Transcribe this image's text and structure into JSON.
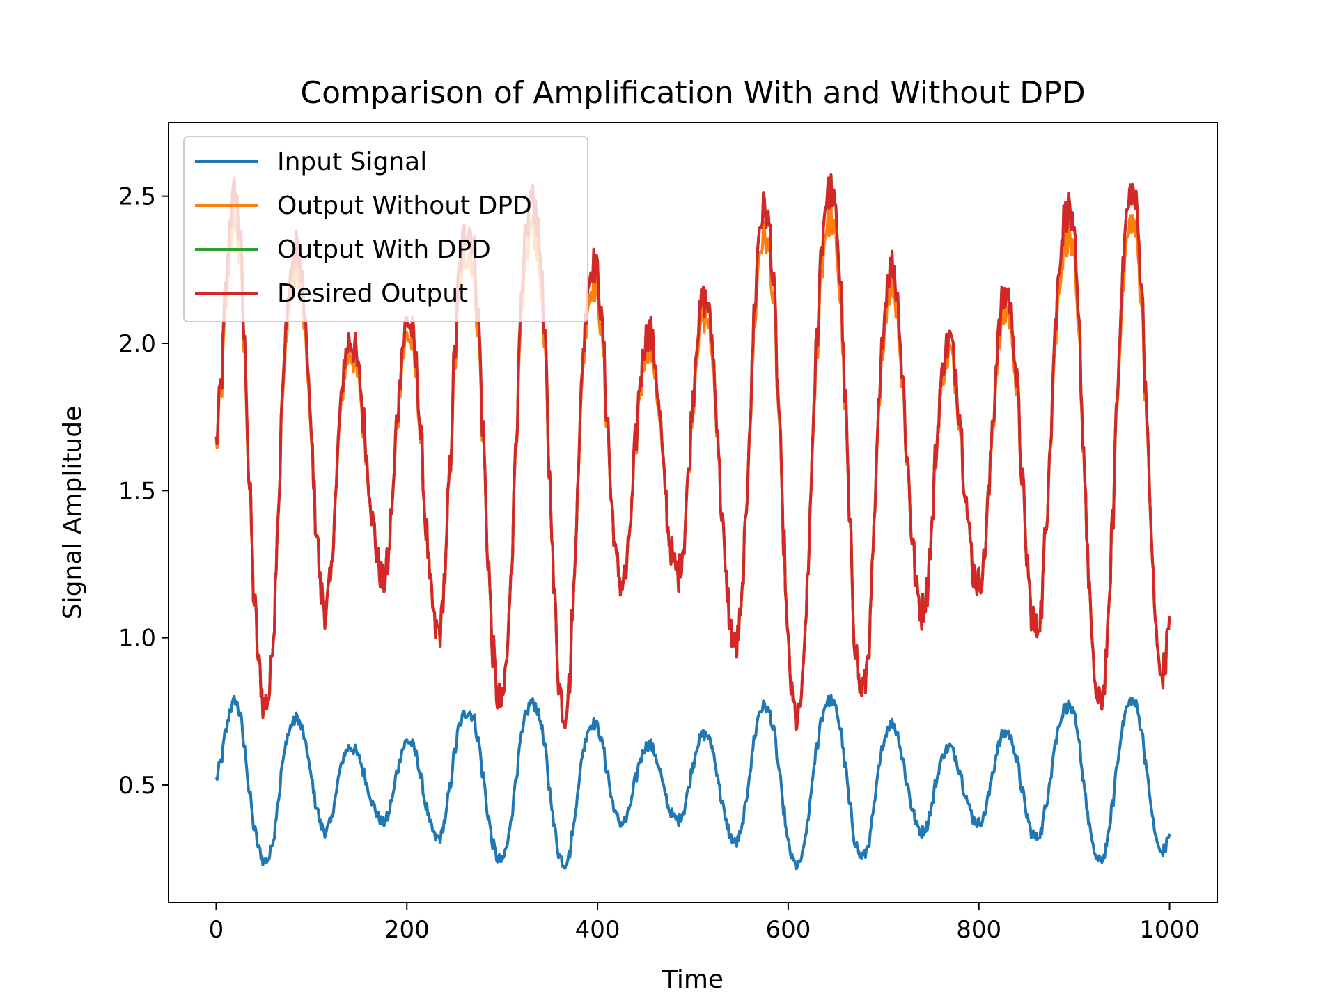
{
  "chart_data": {
    "type": "line",
    "title": "Comparison of Amplification With and Without DPD",
    "xlabel": "Time",
    "ylabel": "Signal Amplitude",
    "xlim": [
      -50,
      1050
    ],
    "ylim": [
      0.1,
      2.75
    ],
    "xticks": [
      0,
      200,
      400,
      600,
      800,
      1000
    ],
    "xtick_labels": [
      "0",
      "200",
      "400",
      "600",
      "800",
      "1000"
    ],
    "yticks": [
      0.5,
      1.0,
      1.5,
      2.0,
      2.5
    ],
    "ytick_labels": [
      "0.5",
      "1.0",
      "1.5",
      "2.0",
      "2.5"
    ],
    "grid": false,
    "legend_position": "top-left",
    "x_range": [
      0,
      1000
    ],
    "input_keypoints": [
      [
        0,
        0.52
      ],
      [
        5,
        0.58
      ],
      [
        10,
        0.68
      ],
      [
        15,
        0.76
      ],
      [
        20,
        0.79
      ],
      [
        25,
        0.74
      ],
      [
        30,
        0.62
      ],
      [
        35,
        0.47
      ],
      [
        40,
        0.35
      ],
      [
        45,
        0.28
      ],
      [
        50,
        0.24
      ],
      [
        55,
        0.25
      ],
      [
        60,
        0.32
      ],
      [
        65,
        0.45
      ],
      [
        70,
        0.58
      ],
      [
        75,
        0.67
      ],
      [
        80,
        0.71
      ],
      [
        85,
        0.73
      ],
      [
        90,
        0.69
      ],
      [
        95,
        0.62
      ],
      [
        100,
        0.52
      ],
      [
        105,
        0.43
      ],
      [
        110,
        0.36
      ],
      [
        115,
        0.34
      ],
      [
        120,
        0.37
      ],
      [
        125,
        0.46
      ],
      [
        130,
        0.55
      ],
      [
        135,
        0.61
      ],
      [
        140,
        0.63
      ],
      [
        145,
        0.62
      ],
      [
        150,
        0.59
      ],
      [
        155,
        0.54
      ],
      [
        160,
        0.48
      ],
      [
        165,
        0.43
      ],
      [
        170,
        0.39
      ],
      [
        175,
        0.37
      ],
      [
        180,
        0.39
      ],
      [
        185,
        0.46
      ],
      [
        190,
        0.55
      ],
      [
        195,
        0.62
      ],
      [
        200,
        0.65
      ],
      [
        205,
        0.64
      ],
      [
        210,
        0.6
      ],
      [
        215,
        0.52
      ],
      [
        220,
        0.43
      ],
      [
        225,
        0.36
      ],
      [
        230,
        0.32
      ],
      [
        235,
        0.32
      ],
      [
        240,
        0.38
      ],
      [
        245,
        0.49
      ],
      [
        250,
        0.61
      ],
      [
        255,
        0.7
      ],
      [
        260,
        0.74
      ],
      [
        265,
        0.75
      ],
      [
        270,
        0.73
      ],
      [
        275,
        0.65
      ],
      [
        280,
        0.53
      ],
      [
        285,
        0.4
      ],
      [
        290,
        0.3
      ],
      [
        295,
        0.25
      ],
      [
        300,
        0.24
      ],
      [
        305,
        0.29
      ],
      [
        310,
        0.4
      ],
      [
        315,
        0.54
      ],
      [
        320,
        0.66
      ],
      [
        325,
        0.74
      ],
      [
        330,
        0.78
      ],
      [
        335,
        0.77
      ],
      [
        340,
        0.72
      ],
      [
        345,
        0.62
      ],
      [
        350,
        0.48
      ],
      [
        355,
        0.35
      ],
      [
        360,
        0.26
      ],
      [
        365,
        0.23
      ],
      [
        370,
        0.26
      ],
      [
        375,
        0.36
      ],
      [
        380,
        0.5
      ],
      [
        385,
        0.62
      ],
      [
        390,
        0.69
      ],
      [
        395,
        0.71
      ],
      [
        400,
        0.7
      ],
      [
        405,
        0.64
      ],
      [
        410,
        0.55
      ],
      [
        415,
        0.45
      ],
      [
        420,
        0.39
      ],
      [
        425,
        0.37
      ],
      [
        430,
        0.38
      ],
      [
        435,
        0.44
      ],
      [
        440,
        0.52
      ],
      [
        445,
        0.59
      ],
      [
        450,
        0.63
      ],
      [
        455,
        0.64
      ],
      [
        460,
        0.61
      ],
      [
        465,
        0.55
      ],
      [
        470,
        0.48
      ],
      [
        475,
        0.42
      ],
      [
        480,
        0.39
      ],
      [
        485,
        0.38
      ],
      [
        490,
        0.41
      ],
      [
        495,
        0.48
      ],
      [
        500,
        0.57
      ],
      [
        505,
        0.64
      ],
      [
        510,
        0.67
      ],
      [
        515,
        0.67
      ],
      [
        520,
        0.63
      ],
      [
        525,
        0.55
      ],
      [
        530,
        0.45
      ],
      [
        535,
        0.37
      ],
      [
        540,
        0.32
      ],
      [
        545,
        0.3
      ],
      [
        550,
        0.33
      ],
      [
        555,
        0.42
      ],
      [
        560,
        0.55
      ],
      [
        565,
        0.67
      ],
      [
        570,
        0.75
      ],
      [
        575,
        0.77
      ],
      [
        580,
        0.75
      ],
      [
        585,
        0.68
      ],
      [
        590,
        0.56
      ],
      [
        595,
        0.42
      ],
      [
        600,
        0.3
      ],
      [
        605,
        0.24
      ],
      [
        610,
        0.22
      ],
      [
        615,
        0.26
      ],
      [
        620,
        0.36
      ],
      [
        625,
        0.5
      ],
      [
        630,
        0.63
      ],
      [
        635,
        0.73
      ],
      [
        640,
        0.78
      ],
      [
        645,
        0.79
      ],
      [
        650,
        0.76
      ],
      [
        655,
        0.69
      ],
      [
        660,
        0.56
      ],
      [
        665,
        0.42
      ],
      [
        670,
        0.31
      ],
      [
        675,
        0.26
      ],
      [
        680,
        0.26
      ],
      [
        685,
        0.31
      ],
      [
        690,
        0.42
      ],
      [
        695,
        0.55
      ],
      [
        700,
        0.65
      ],
      [
        705,
        0.7
      ],
      [
        710,
        0.71
      ],
      [
        715,
        0.67
      ],
      [
        720,
        0.59
      ],
      [
        725,
        0.5
      ],
      [
        730,
        0.42
      ],
      [
        735,
        0.36
      ],
      [
        740,
        0.34
      ],
      [
        745,
        0.36
      ],
      [
        750,
        0.42
      ],
      [
        755,
        0.51
      ],
      [
        760,
        0.58
      ],
      [
        765,
        0.62
      ],
      [
        770,
        0.63
      ],
      [
        775,
        0.6
      ],
      [
        780,
        0.55
      ],
      [
        785,
        0.48
      ],
      [
        790,
        0.42
      ],
      [
        795,
        0.38
      ],
      [
        800,
        0.37
      ],
      [
        805,
        0.39
      ],
      [
        810,
        0.46
      ],
      [
        815,
        0.55
      ],
      [
        820,
        0.63
      ],
      [
        825,
        0.67
      ],
      [
        830,
        0.68
      ],
      [
        835,
        0.65
      ],
      [
        840,
        0.58
      ],
      [
        845,
        0.49
      ],
      [
        850,
        0.4
      ],
      [
        855,
        0.34
      ],
      [
        860,
        0.32
      ],
      [
        865,
        0.34
      ],
      [
        870,
        0.42
      ],
      [
        875,
        0.53
      ],
      [
        880,
        0.64
      ],
      [
        885,
        0.72
      ],
      [
        890,
        0.76
      ],
      [
        895,
        0.77
      ],
      [
        900,
        0.73
      ],
      [
        905,
        0.64
      ],
      [
        910,
        0.51
      ],
      [
        915,
        0.38
      ],
      [
        920,
        0.28
      ],
      [
        925,
        0.24
      ],
      [
        930,
        0.25
      ],
      [
        935,
        0.31
      ],
      [
        940,
        0.43
      ],
      [
        945,
        0.57
      ],
      [
        950,
        0.69
      ],
      [
        955,
        0.76
      ],
      [
        960,
        0.79
      ],
      [
        965,
        0.77
      ],
      [
        970,
        0.7
      ],
      [
        975,
        0.58
      ],
      [
        980,
        0.44
      ],
      [
        985,
        0.33
      ],
      [
        990,
        0.27
      ],
      [
        995,
        0.28
      ],
      [
        1000,
        0.34
      ]
    ],
    "series": [
      {
        "name": "Input Signal",
        "color": "#1f77b4",
        "gain": 1.0,
        "compression": 0
      },
      {
        "name": "Output Without DPD",
        "color": "#ff7f0e",
        "gain": 3.2,
        "compression": 0.12
      },
      {
        "name": "Output With DPD",
        "color": "#2ca02c",
        "gain": 3.2,
        "compression": 0
      },
      {
        "name": "Desired Output",
        "color": "#d62728",
        "gain": 3.2,
        "compression": 0
      }
    ]
  }
}
